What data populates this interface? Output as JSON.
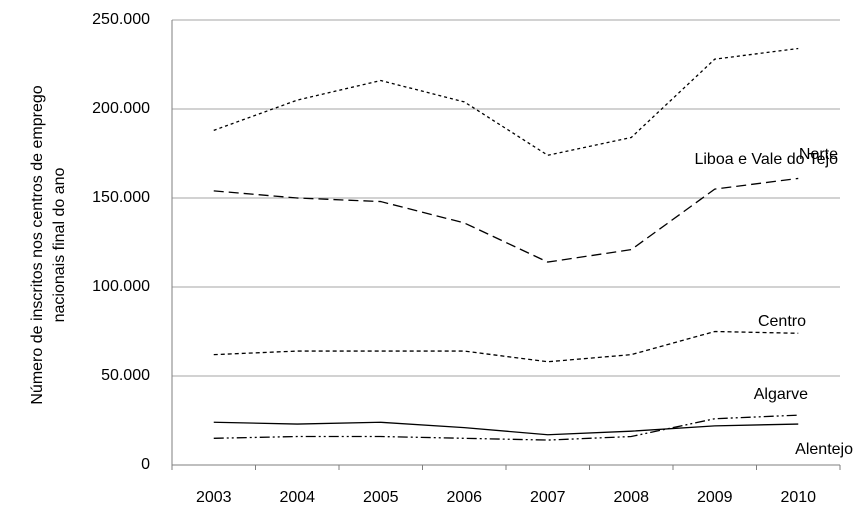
{
  "chart_data": {
    "type": "line",
    "ylabel": [
      "Número de inscritos nos centros de emprego",
      "nacionais final do ano"
    ],
    "categories": [
      "2003",
      "2004",
      "2005",
      "2006",
      "2007",
      "2008",
      "2009",
      "2010"
    ],
    "series": [
      {
        "name": "Norte",
        "color": "#000000",
        "dash": "3,3",
        "values": [
          188000,
          205000,
          216000,
          204000,
          174000,
          184000,
          228000,
          234000
        ]
      },
      {
        "name": "Liboa e Vale do Tejo",
        "color": "#000000",
        "dash": "10,5",
        "values": [
          154000,
          150000,
          148000,
          136000,
          114000,
          121000,
          155000,
          161000
        ]
      },
      {
        "name": "Centro",
        "color": "#000000",
        "dash": "4,3",
        "values": [
          62000,
          64000,
          64000,
          64000,
          58000,
          62000,
          75000,
          74000
        ]
      },
      {
        "name": "Algarve",
        "color": "#000000",
        "dash": "10,3,2,3,2,3",
        "values": [
          15000,
          16000,
          16000,
          15000,
          14000,
          16000,
          26000,
          28000
        ]
      },
      {
        "name": "Alentejo",
        "color": "#000000",
        "dash": "none",
        "values": [
          24000,
          23000,
          24000,
          21000,
          17000,
          19000,
          22000,
          23000
        ]
      }
    ],
    "ylim": [
      0,
      250000
    ],
    "yticks": [
      0,
      {
        "value": 50000,
        "label": "50.000"
      },
      {
        "value": 100000,
        "label": "100.000"
      },
      {
        "value": 150000,
        "label": "150.000"
      },
      {
        "value": 200000,
        "label": "200.000"
      },
      {
        "value": 250000,
        "label": "250.000"
      }
    ],
    "grid": true
  }
}
